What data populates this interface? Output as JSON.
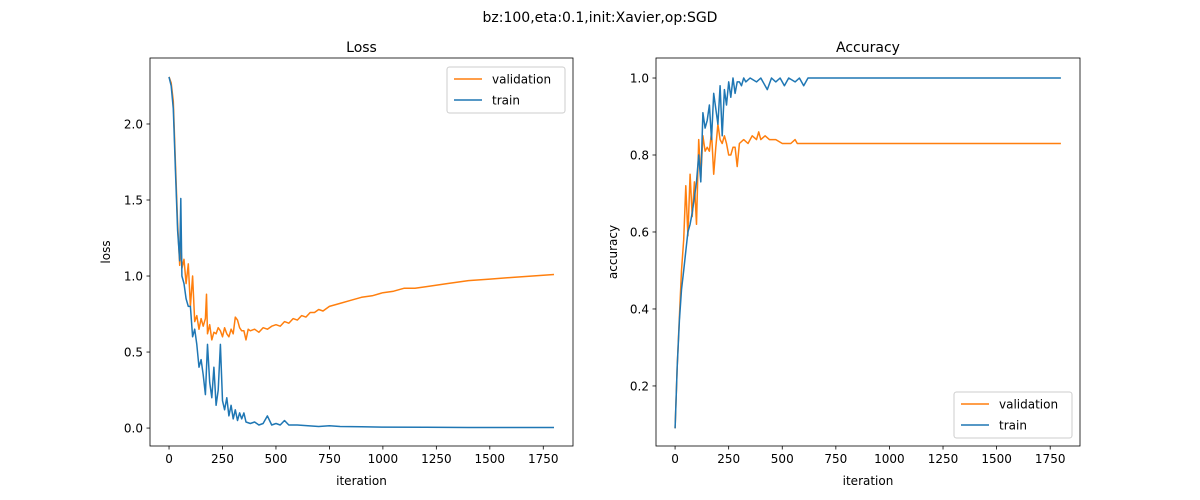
{
  "suptitle": "bz:100,eta:0.1,init:Xavier,op:SGD",
  "colors": {
    "validation": "#ff7f0e",
    "train": "#1f77b4"
  },
  "chart_data": [
    {
      "type": "line",
      "title": "Loss",
      "xlabel": "iteration",
      "ylabel": "loss",
      "xlim": [
        -89,
        1889
      ],
      "ylim": [
        -0.118,
        2.434
      ],
      "xticks": [
        0,
        250,
        500,
        750,
        1000,
        1250,
        1500,
        1750
      ],
      "xtick_labels": [
        "0",
        "250",
        "500",
        "750",
        "1000",
        "1250",
        "1500",
        "1750"
      ],
      "yticks": [
        0,
        0.5,
        1,
        1.5,
        2
      ],
      "ytick_labels": [
        "0.0",
        "0.5",
        "1.0",
        "1.5",
        "2.0"
      ],
      "legend": "top-right",
      "series": [
        {
          "name": "validation",
          "x": [
            0,
            10,
            20,
            30,
            40,
            50,
            55,
            60,
            70,
            80,
            90,
            100,
            110,
            120,
            130,
            140,
            150,
            160,
            170,
            175,
            180,
            190,
            200,
            210,
            220,
            230,
            240,
            250,
            260,
            270,
            280,
            290,
            300,
            310,
            320,
            330,
            340,
            350,
            360,
            370,
            380,
            400,
            420,
            440,
            460,
            480,
            500,
            520,
            540,
            560,
            580,
            600,
            620,
            640,
            660,
            680,
            700,
            720,
            750,
            800,
            850,
            900,
            950,
            1000,
            1050,
            1100,
            1150,
            1200,
            1300,
            1400,
            1500,
            1600,
            1700,
            1800
          ],
          "y": [
            2.31,
            2.27,
            2.15,
            1.75,
            1.35,
            1.07,
            1.23,
            1.05,
            1.11,
            0.95,
            1.08,
            0.8,
            1.0,
            0.7,
            0.74,
            0.65,
            0.72,
            0.67,
            0.72,
            0.88,
            0.62,
            0.68,
            0.58,
            0.63,
            0.62,
            0.66,
            0.64,
            0.6,
            0.66,
            0.62,
            0.6,
            0.65,
            0.62,
            0.73,
            0.71,
            0.66,
            0.64,
            0.64,
            0.58,
            0.65,
            0.64,
            0.65,
            0.63,
            0.66,
            0.65,
            0.67,
            0.68,
            0.67,
            0.7,
            0.69,
            0.72,
            0.71,
            0.74,
            0.73,
            0.76,
            0.76,
            0.78,
            0.77,
            0.8,
            0.82,
            0.84,
            0.86,
            0.87,
            0.89,
            0.9,
            0.92,
            0.92,
            0.93,
            0.95,
            0.97,
            0.98,
            0.99,
            1.0,
            1.01
          ]
        },
        {
          "name": "train",
          "x": [
            0,
            10,
            20,
            30,
            40,
            50,
            55,
            60,
            70,
            80,
            90,
            100,
            110,
            120,
            130,
            140,
            150,
            160,
            170,
            180,
            190,
            200,
            210,
            220,
            230,
            240,
            250,
            260,
            270,
            280,
            290,
            300,
            310,
            320,
            330,
            340,
            350,
            360,
            380,
            400,
            420,
            440,
            460,
            480,
            500,
            520,
            540,
            560,
            600,
            650,
            700,
            750,
            800,
            900,
            1000,
            1200,
            1400,
            1600,
            1800
          ],
          "y": [
            2.31,
            2.25,
            2.1,
            1.7,
            1.3,
            1.1,
            1.51,
            1.0,
            0.95,
            0.85,
            0.8,
            0.8,
            0.6,
            0.65,
            0.55,
            0.4,
            0.45,
            0.35,
            0.22,
            0.55,
            0.3,
            0.2,
            0.4,
            0.15,
            0.25,
            0.55,
            0.18,
            0.12,
            0.2,
            0.08,
            0.15,
            0.06,
            0.12,
            0.05,
            0.1,
            0.06,
            0.1,
            0.04,
            0.03,
            0.04,
            0.02,
            0.03,
            0.08,
            0.02,
            0.03,
            0.02,
            0.05,
            0.02,
            0.02,
            0.015,
            0.01,
            0.015,
            0.01,
            0.008,
            0.006,
            0.005,
            0.004,
            0.004,
            0.004
          ]
        }
      ]
    },
    {
      "type": "line",
      "title": "Accuracy",
      "xlabel": "iteration",
      "ylabel": "accuracy",
      "xlim": [
        -89,
        1889
      ],
      "ylim": [
        0.044,
        1.052
      ],
      "xticks": [
        0,
        250,
        500,
        750,
        1000,
        1250,
        1500,
        1750
      ],
      "xtick_labels": [
        "0",
        "250",
        "500",
        "750",
        "1000",
        "1250",
        "1500",
        "1750"
      ],
      "yticks": [
        0.2,
        0.4,
        0.6,
        0.8,
        1.0
      ],
      "ytick_labels": [
        "0.2",
        "0.4",
        "0.6",
        "0.8",
        "1.0"
      ],
      "legend": "lower-right",
      "series": [
        {
          "name": "validation",
          "x": [
            0,
            10,
            20,
            30,
            40,
            50,
            60,
            70,
            80,
            90,
            100,
            110,
            120,
            130,
            140,
            150,
            160,
            170,
            180,
            190,
            200,
            210,
            220,
            230,
            240,
            250,
            260,
            270,
            280,
            290,
            300,
            320,
            340,
            360,
            380,
            390,
            400,
            420,
            440,
            470,
            500,
            540,
            560,
            570,
            1800
          ],
          "y": [
            0.09,
            0.25,
            0.38,
            0.5,
            0.58,
            0.72,
            0.59,
            0.75,
            0.64,
            0.73,
            0.62,
            0.84,
            0.74,
            0.85,
            0.81,
            0.82,
            0.81,
            0.86,
            0.75,
            0.82,
            0.88,
            0.84,
            0.83,
            0.85,
            0.83,
            0.8,
            0.8,
            0.82,
            0.82,
            0.77,
            0.83,
            0.84,
            0.83,
            0.85,
            0.84,
            0.86,
            0.84,
            0.85,
            0.84,
            0.84,
            0.83,
            0.83,
            0.84,
            0.83,
            0.83
          ]
        },
        {
          "name": "train",
          "x": [
            0,
            10,
            20,
            30,
            40,
            50,
            60,
            70,
            80,
            90,
            100,
            110,
            120,
            130,
            140,
            150,
            160,
            170,
            180,
            190,
            200,
            210,
            220,
            230,
            240,
            250,
            260,
            270,
            280,
            290,
            300,
            310,
            320,
            330,
            350,
            380,
            400,
            430,
            450,
            470,
            490,
            510,
            530,
            560,
            580,
            600,
            620,
            1800
          ],
          "y": [
            0.09,
            0.25,
            0.37,
            0.45,
            0.5,
            0.55,
            0.6,
            0.62,
            0.65,
            0.69,
            0.73,
            0.8,
            0.73,
            0.91,
            0.87,
            0.89,
            0.93,
            0.84,
            0.96,
            0.92,
            0.88,
            0.98,
            0.85,
            0.97,
            0.93,
            0.99,
            0.95,
            1.0,
            0.96,
            0.99,
            0.99,
            0.98,
            1.0,
            0.99,
            1.0,
            0.99,
            1.0,
            0.97,
            1.0,
            0.99,
            1.0,
            0.98,
            1.0,
            0.99,
            1.0,
            0.98,
            1.0,
            1.0
          ]
        }
      ]
    }
  ]
}
